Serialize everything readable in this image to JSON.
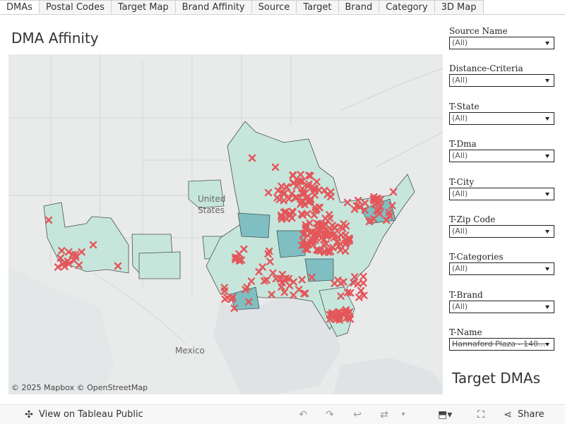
{
  "tabs": [
    {
      "label": "DMAs",
      "active": true
    },
    {
      "label": "Postal Codes"
    },
    {
      "label": "Target Map"
    },
    {
      "label": "Brand Affinity"
    },
    {
      "label": "Source"
    },
    {
      "label": "Target"
    },
    {
      "label": "Brand"
    },
    {
      "label": "Category"
    },
    {
      "label": "3D Map"
    }
  ],
  "dashboard_title": "DMA Affinity",
  "map": {
    "labels": {
      "united": "United",
      "states": "States",
      "mexico": "Mexico"
    },
    "attribution": "© 2025 Mapbox  © OpenStreetMap",
    "colors": {
      "fill_light": "#c6e6dc",
      "fill_dark": "#7fbfc2",
      "marker": "#e4565a",
      "land": "#e9eaea",
      "water": "#d8dde0"
    }
  },
  "filters": [
    {
      "label": "Source Name",
      "value": "(All)"
    },
    {
      "label": "Distance-Criteria",
      "value": "(All)"
    },
    {
      "label": "T-State",
      "value": "(All)"
    },
    {
      "label": "T-Dma",
      "value": "(All)"
    },
    {
      "label": "T-City",
      "value": "(All)"
    },
    {
      "label": "T-Zip Code",
      "value": "(All)"
    },
    {
      "label": "T-Categories",
      "value": "(All)"
    },
    {
      "label": "T-Brand",
      "value": "(All)"
    },
    {
      "label": "T-Name",
      "value": "Hannaford Plaza - 140..."
    }
  ],
  "target_title": "Target DMAs",
  "footer": {
    "view_label": "View on Tableau Public",
    "share_label": "Share",
    "icons": [
      "tableau-icon",
      "undo-icon",
      "redo-icon",
      "revert-icon",
      "refresh-icon",
      "download-icon",
      "fullscreen-icon",
      "share-icon"
    ]
  }
}
